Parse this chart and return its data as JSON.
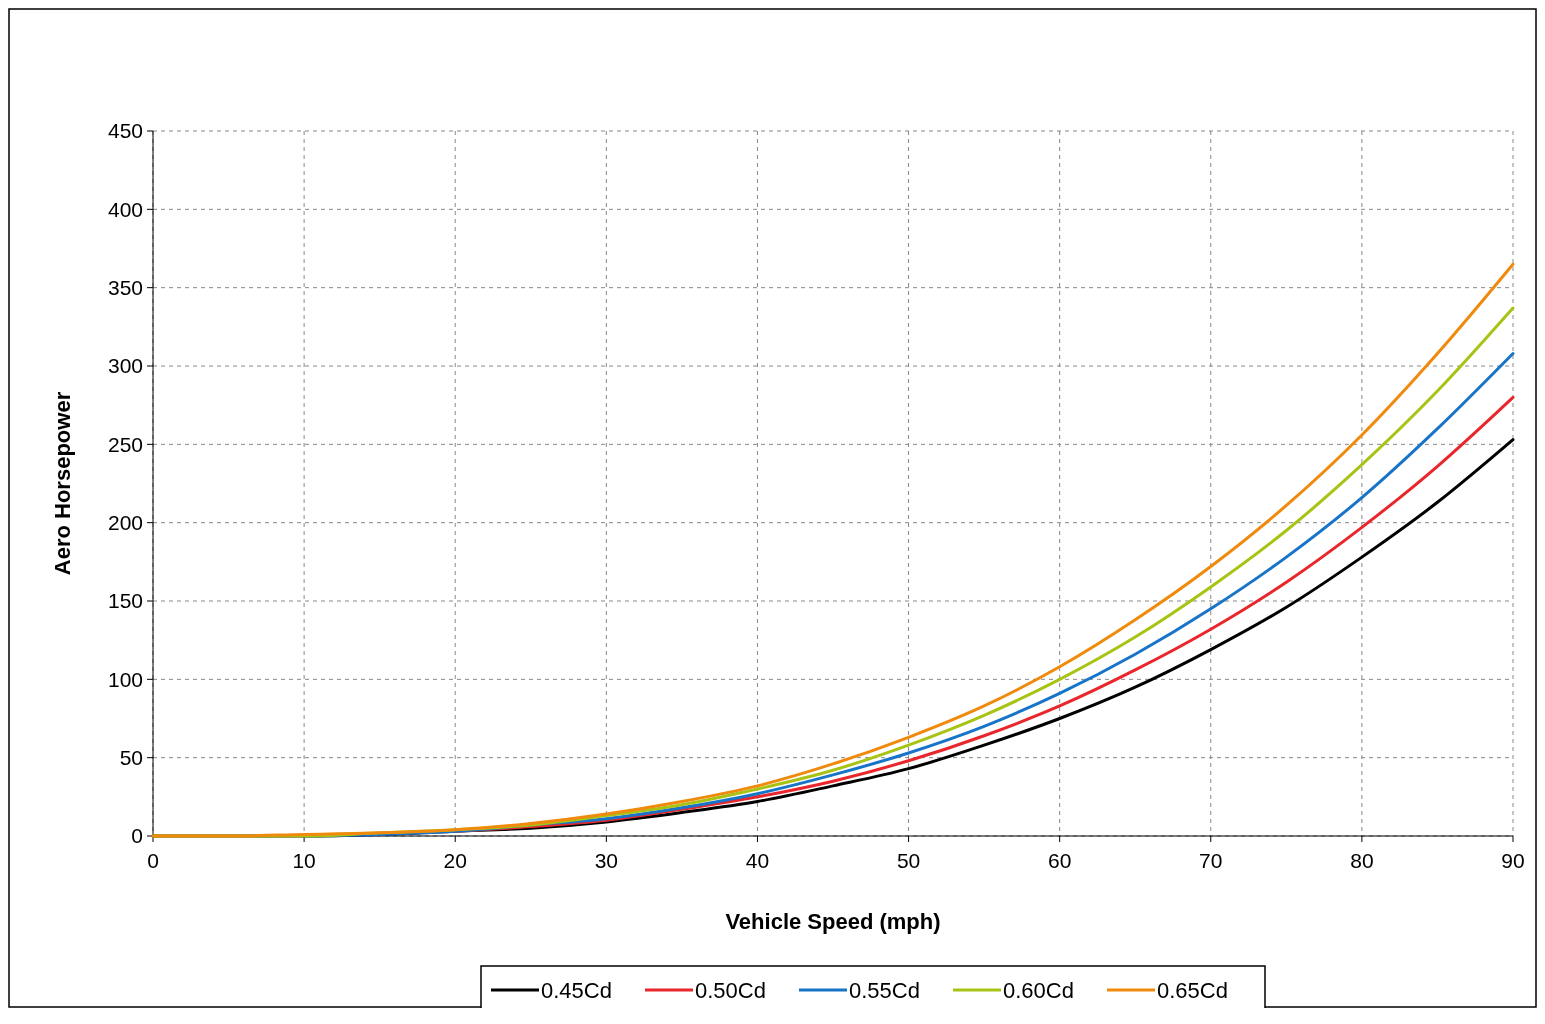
{
  "chart_data": {
    "type": "line",
    "xlabel": "Vehicle Speed (mph)",
    "ylabel": "Aero Horsepower",
    "x": [
      0,
      5,
      10,
      15,
      20,
      25,
      30,
      35,
      40,
      45,
      50,
      55,
      60,
      65,
      70,
      75,
      80,
      85,
      90
    ],
    "series": [
      {
        "name": "0.45Cd",
        "color": "#000000",
        "values": [
          0,
          0,
          0,
          1,
          3,
          5,
          9,
          15,
          22,
          32,
          43,
          58,
          75,
          95,
          119,
          146,
          178,
          213,
          253
        ]
      },
      {
        "name": "0.50Cd",
        "color": "#e8262b",
        "values": [
          null,
          null,
          null,
          null,
          3,
          6,
          10,
          17,
          25,
          35,
          48,
          64,
          83,
          106,
          132,
          162,
          197,
          236,
          280
        ]
      },
      {
        "name": "0.55Cd",
        "color": "#1874c9",
        "values": [
          null,
          null,
          0,
          1,
          3,
          7,
          11,
          18,
          27,
          39,
          53,
          70,
          91,
          116,
          145,
          178,
          216,
          260,
          308
        ]
      },
      {
        "name": "0.60Cd",
        "color": "#a8c313",
        "values": [
          0,
          0,
          0,
          2,
          4,
          7,
          13,
          20,
          30,
          42,
          58,
          77,
          100,
          127,
          159,
          195,
          237,
          284,
          337
        ]
      },
      {
        "name": "0.65Cd",
        "color": "#f08a0c",
        "values": [
          0,
          0,
          1,
          2,
          4,
          8,
          14,
          22,
          32,
          46,
          63,
          83,
          108,
          138,
          172,
          211,
          256,
          308,
          365
        ]
      }
    ],
    "xlim": [
      0,
      90
    ],
    "xticks": [
      0,
      10,
      20,
      30,
      40,
      50,
      60,
      70,
      80,
      90
    ],
    "ylim": [
      0,
      450
    ],
    "yticks": [
      0,
      50,
      100,
      150,
      200,
      250,
      300,
      350,
      400,
      450
    ],
    "grid": true,
    "legend": "bottom",
    "line_style": "solid"
  }
}
